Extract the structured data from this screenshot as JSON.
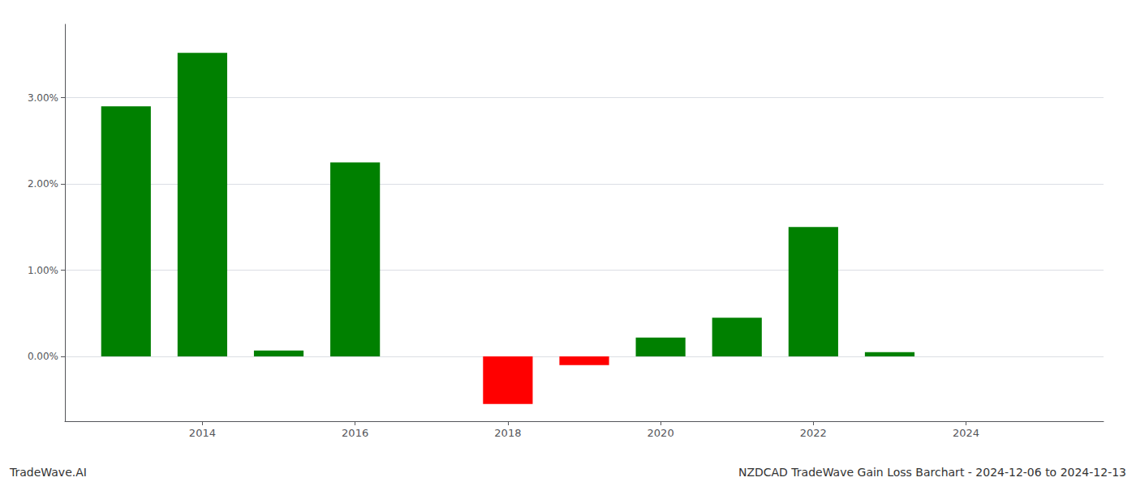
{
  "chart_data": {
    "type": "bar",
    "x": [
      2013,
      2014,
      2015,
      2016,
      2017,
      2018,
      2019,
      2020,
      2021,
      2022,
      2023,
      2024
    ],
    "values": [
      2.9,
      3.52,
      0.07,
      2.25,
      0.0,
      -0.55,
      -0.1,
      0.22,
      0.45,
      1.5,
      0.05,
      0.0
    ],
    "colors": [
      "#008000",
      "#008000",
      "#008000",
      "#008000",
      "#008000",
      "#ff0000",
      "#ff0000",
      "#008000",
      "#008000",
      "#008000",
      "#008000",
      "#008000"
    ],
    "xlim": [
      2012.2,
      2025.8
    ],
    "xticks": [
      2014,
      2016,
      2018,
      2020,
      2022,
      2024
    ],
    "ylim": [
      -0.75,
      3.85
    ],
    "yticks": [
      {
        "value": 0.0,
        "label": "0.00%"
      },
      {
        "value": 1.0,
        "label": "1.00%"
      },
      {
        "value": 2.0,
        "label": "2.00%"
      },
      {
        "value": 3.0,
        "label": "3.00%"
      }
    ],
    "grid": true,
    "annotations": [
      "TradeWave.AI",
      "NZDCAD TradeWave Gain Loss Barchart - 2024-12-06 to 2024-12-13"
    ]
  }
}
